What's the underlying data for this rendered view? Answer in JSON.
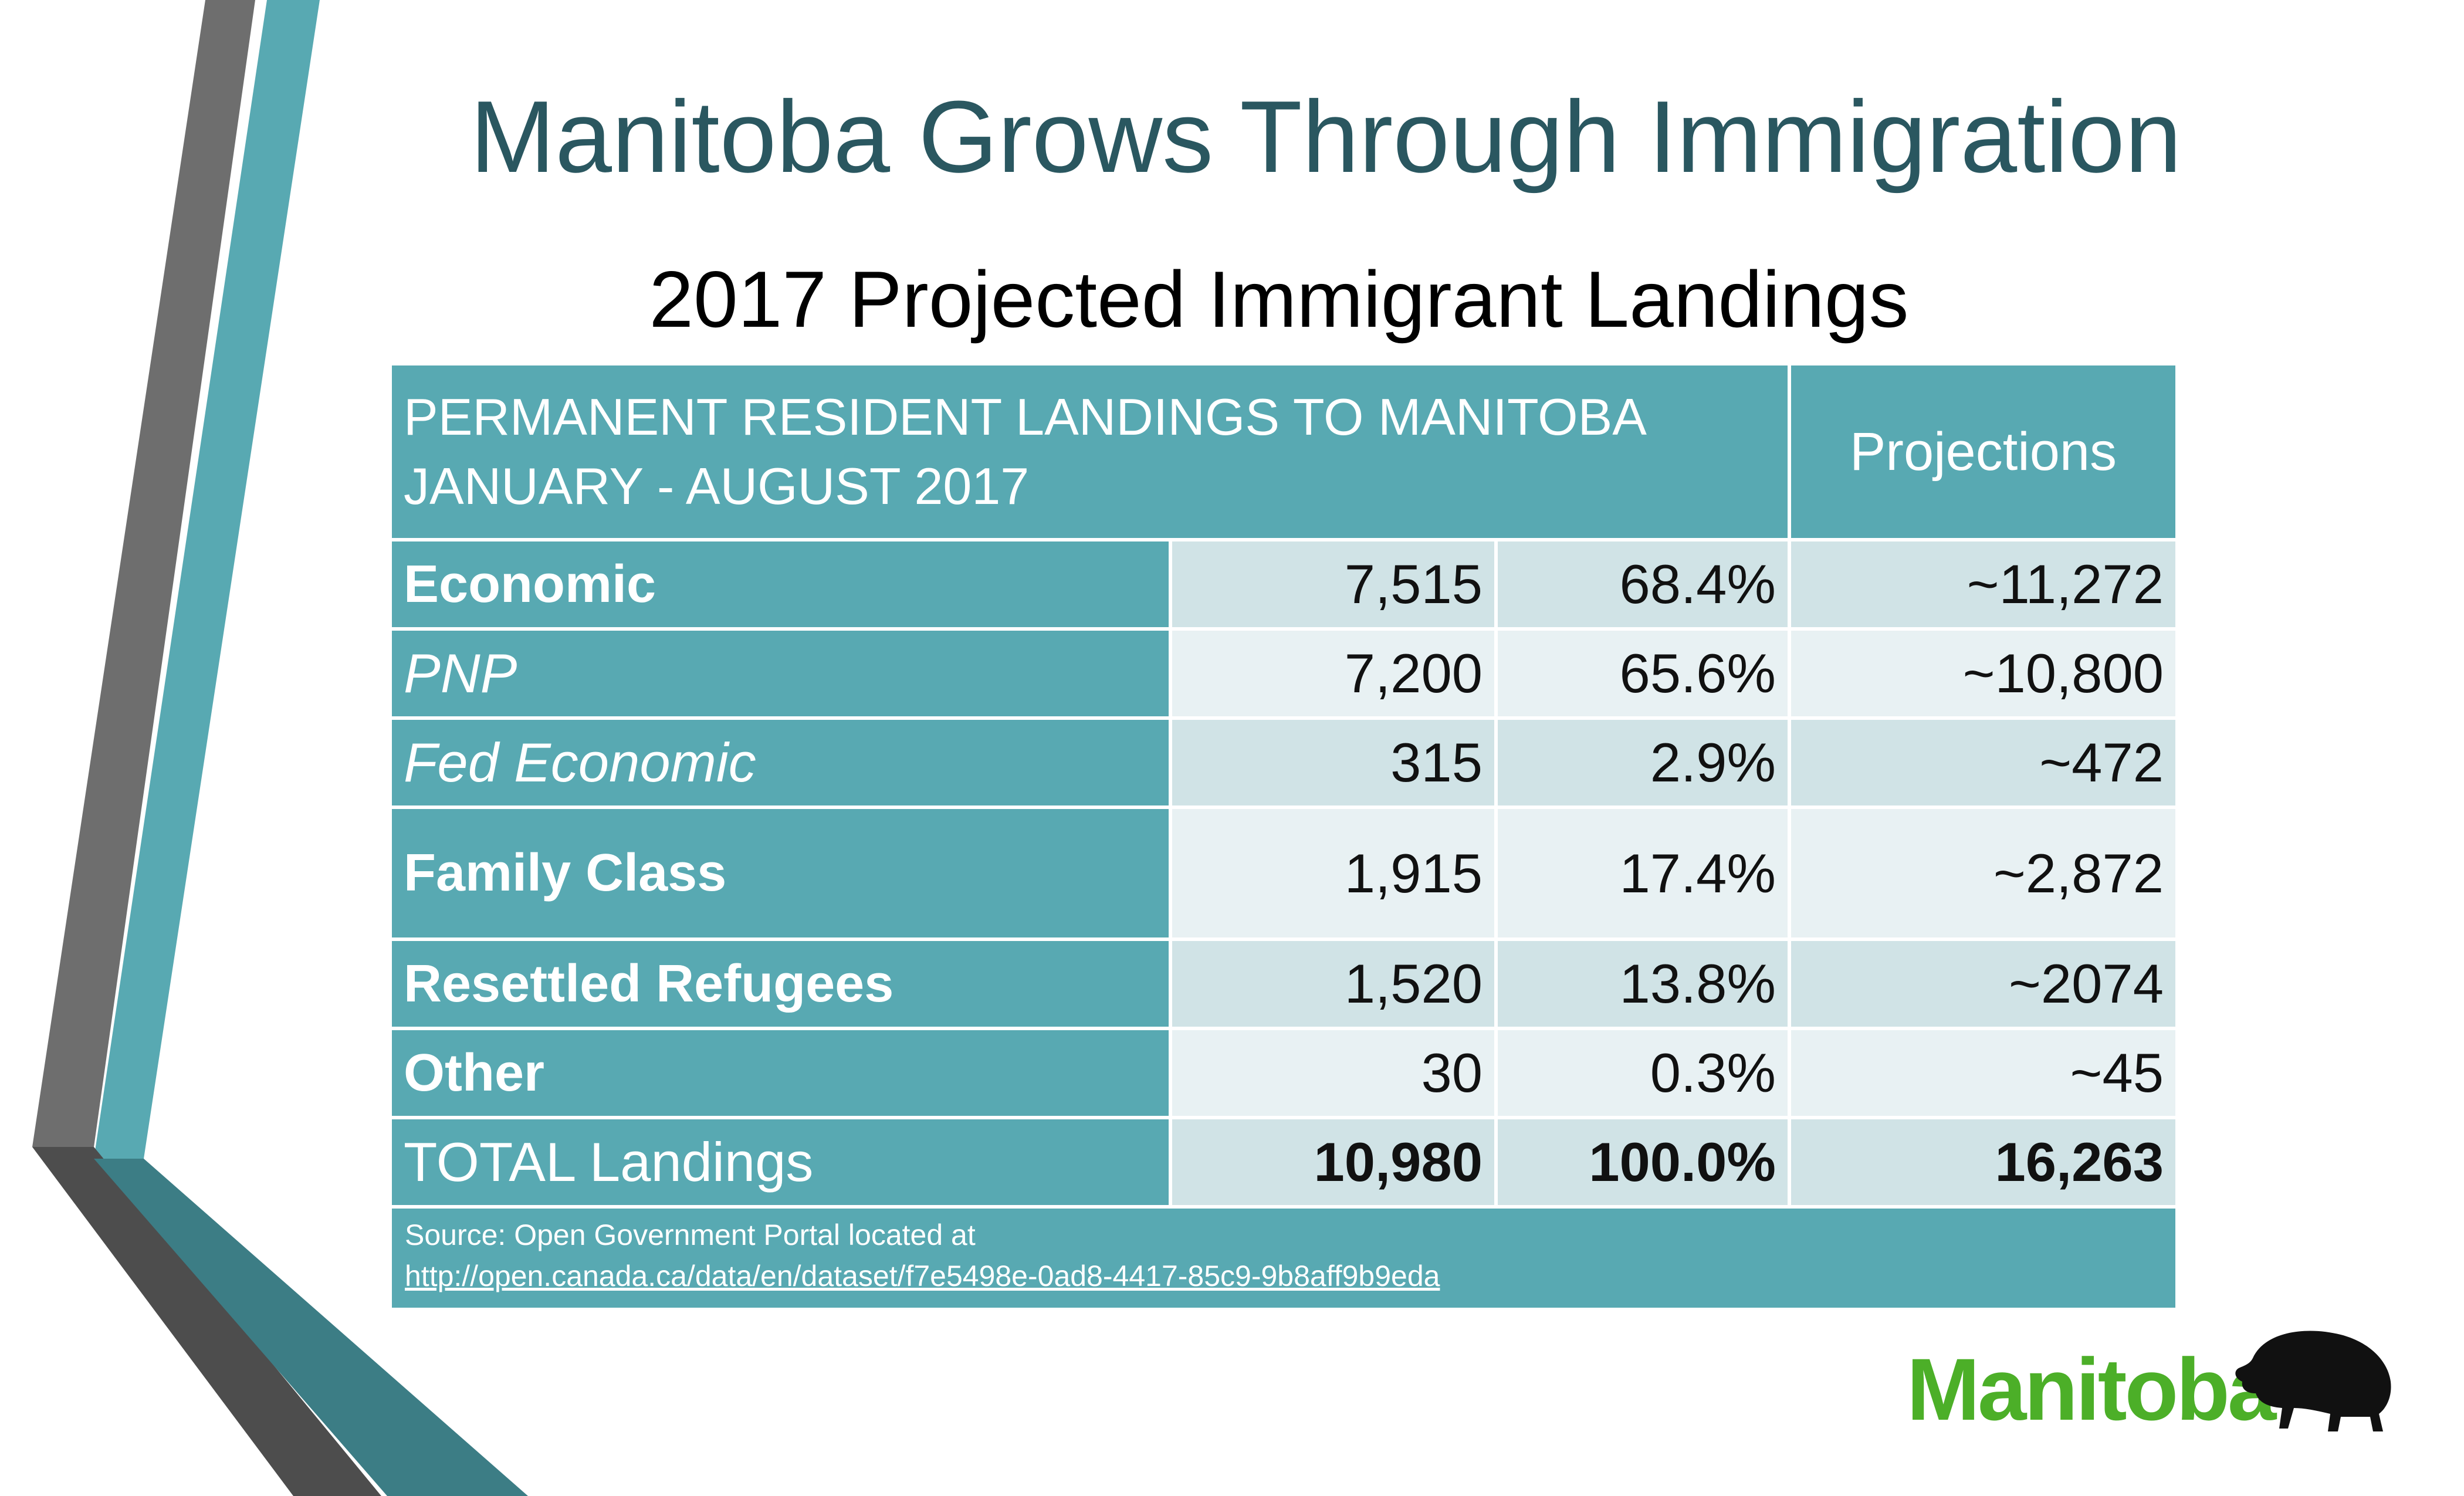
{
  "title": "Manitoba Grows Through Immigration",
  "subtitle": "2017 Projected Immigrant Landings",
  "table": {
    "header_line1": "PERMANENT RESIDENT LANDINGS TO MANITOBA",
    "header_line2": "JANUARY - AUGUST 2017",
    "header_projections": "Projections",
    "rows": [
      {
        "label": "Economic",
        "count": "7,515",
        "pct": "68.4%",
        "proj": "~11,272"
      },
      {
        "label": "PNP",
        "count": "7,200",
        "pct": "65.6%",
        "proj": "~10,800"
      },
      {
        "label": "Fed Economic",
        "count": "315",
        "pct": "2.9%",
        "proj": "~472"
      },
      {
        "label": "Family Class",
        "count": "1,915",
        "pct": "17.4%",
        "proj": "~2,872"
      },
      {
        "label": "Resettled Refugees",
        "count": "1,520",
        "pct": "13.8%",
        "proj": "~2074"
      },
      {
        "label": "Other",
        "count": "30",
        "pct": "0.3%",
        "proj": "~45"
      },
      {
        "label": "TOTAL Landings",
        "count": "10,980",
        "pct": "100.0%",
        "proj": "16,263"
      }
    ],
    "source_text": "Source: Open Government Portal located at",
    "source_link": "http://open.canada.ca/data/en/dataset/f7e5498e-0ad8-4417-85c9-9b8aff9b9eda"
  },
  "logo": {
    "wordmark": "Manitoba",
    "icon": "bison-icon"
  },
  "colors": {
    "teal": "#58a9b2",
    "dark_teal": "#2a5760",
    "gray": "#6e6e6e",
    "logo_green": "#4caf28"
  }
}
